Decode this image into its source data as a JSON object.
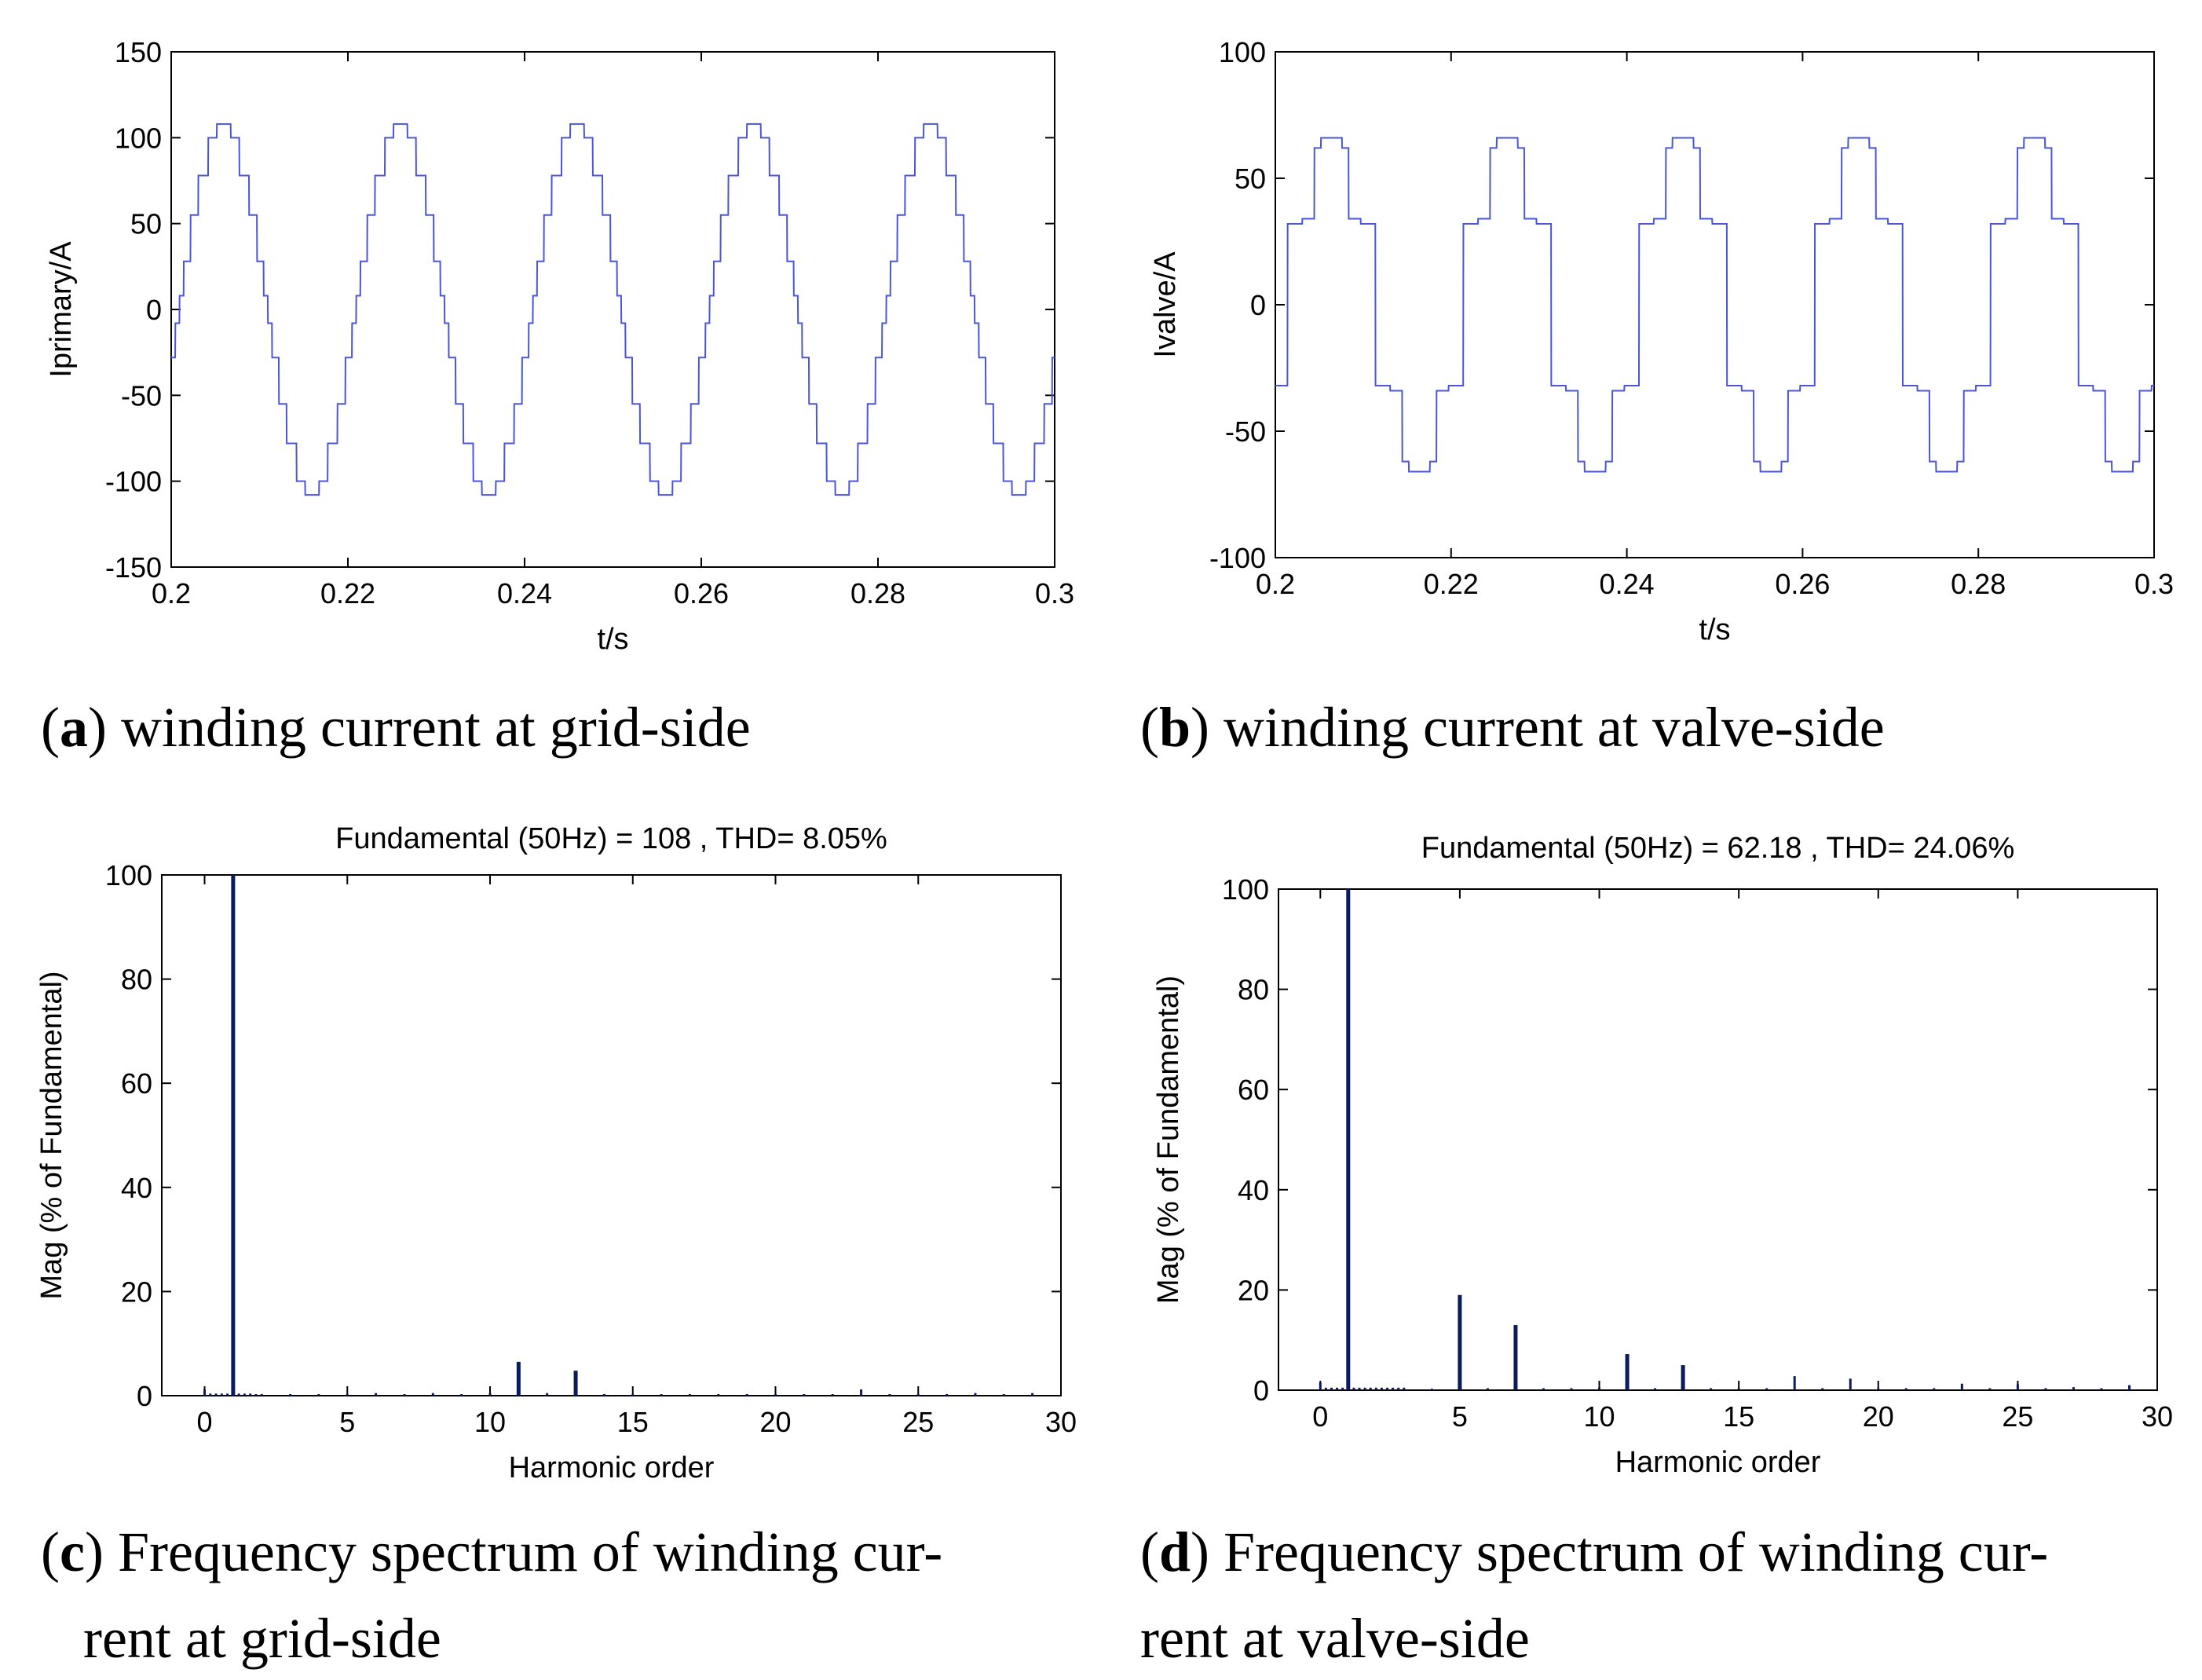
{
  "chart_data": [
    {
      "id": "a",
      "type": "line",
      "caption_letter": "a",
      "caption_lines": [
        "winding current at grid-side"
      ],
      "title": "",
      "xlabel": "t/s",
      "ylabel": "Iprimary/A",
      "xlim": [
        0.2,
        0.3
      ],
      "ylim": [
        -150,
        150
      ],
      "xticks": [
        0.2,
        0.22,
        0.24,
        0.26,
        0.28,
        0.3
      ],
      "xtick_labels": [
        "0.2",
        "0.22",
        "0.24",
        "0.26",
        "0.28",
        "0.3"
      ],
      "yticks": [
        -150,
        -100,
        -50,
        0,
        50,
        100,
        150
      ],
      "ytick_labels": [
        "-150",
        "-100",
        "-50",
        "0",
        "50",
        "100",
        "150"
      ],
      "line_color": "#4a55d8",
      "waveform": {
        "frequency_hz": 50,
        "phase_deg": -17,
        "steps": [
          -108,
          -100,
          -78,
          -55,
          -28,
          -8,
          8,
          28,
          55,
          78,
          100,
          108
        ],
        "thresholds": [
          0.97,
          0.85,
          0.62,
          0.38,
          0.15,
          0.0,
          0.15,
          0.38,
          0.62,
          0.85,
          0.97
        ]
      }
    },
    {
      "id": "b",
      "type": "line",
      "caption_letter": "b",
      "caption_lines": [
        "winding current at valve-side"
      ],
      "title": "",
      "xlabel": "t/s",
      "ylabel": "Ivalve/A",
      "xlim": [
        0.2,
        0.3
      ],
      "ylim": [
        -100,
        100
      ],
      "xticks": [
        0.2,
        0.22,
        0.24,
        0.26,
        0.28,
        0.3
      ],
      "xtick_labels": [
        "0.2",
        "0.22",
        "0.24",
        "0.26",
        "0.28",
        "0.3"
      ],
      "yticks": [
        -100,
        -50,
        0,
        50,
        100
      ],
      "ytick_labels": [
        "-100",
        "-50",
        "0",
        "50",
        "100"
      ],
      "line_color": "#4a55d8",
      "waveform": {
        "frequency_hz": 50,
        "phase_deg": -25,
        "steps": [
          -66,
          -62,
          -34,
          -32,
          32,
          34,
          62,
          66
        ],
        "thresholds": [
          0.93,
          0.82,
          0.5,
          0.0,
          0.5,
          0.82,
          0.93
        ]
      }
    },
    {
      "id": "c",
      "type": "bar",
      "caption_letter": "c",
      "caption_lines": [
        "Frequency spectrum of winding cur-",
        "rent at grid-side"
      ],
      "title": "Fundamental (50Hz) = 108 , THD= 8.05%",
      "xlabel": "Harmonic order",
      "ylabel": "Mag (% of Fundamental)",
      "xlim": [
        -1.5,
        30
      ],
      "ylim": [
        0,
        100
      ],
      "xticks": [
        0,
        5,
        10,
        15,
        20,
        25,
        30
      ],
      "xtick_labels": [
        "0",
        "5",
        "10",
        "15",
        "20",
        "25",
        "30"
      ],
      "yticks": [
        0,
        20,
        40,
        60,
        80,
        100
      ],
      "ytick_labels": [
        "0",
        "20",
        "40",
        "60",
        "80",
        "100"
      ],
      "bar_color": "#0a1a5a",
      "harmonics": [
        0,
        0.2,
        0.4,
        0.6,
        0.8,
        1,
        1.2,
        1.4,
        1.6,
        1.8,
        2,
        3,
        4,
        5,
        6,
        7,
        8,
        9,
        10,
        11,
        12,
        13,
        14,
        15,
        16,
        17,
        18,
        19,
        20,
        21,
        22,
        23,
        24,
        25,
        26,
        27,
        28,
        29
      ],
      "values": [
        1.2,
        0.4,
        0.4,
        0.4,
        0.4,
        100,
        0.4,
        0.4,
        0.4,
        0.3,
        0.3,
        0.3,
        0.3,
        0.3,
        0.5,
        0.3,
        0.5,
        0.3,
        0.5,
        6.5,
        0.5,
        4.8,
        0.3,
        0.3,
        0.3,
        0.3,
        0.3,
        0.3,
        0.3,
        0.3,
        0.3,
        1.2,
        0.3,
        0.3,
        0.3,
        0.5,
        0.3,
        0.5
      ]
    },
    {
      "id": "d",
      "type": "bar",
      "caption_letter": "d",
      "caption_lines": [
        "Frequency spectrum of winding cur-",
        "rent at valve-side"
      ],
      "title": "Fundamental (50Hz) = 62.18 , THD= 24.06%",
      "xlabel": "Harmonic order",
      "ylabel": "Mag (% of Fundamental)",
      "xlim": [
        -1.5,
        30
      ],
      "ylim": [
        0,
        100
      ],
      "xticks": [
        0,
        5,
        10,
        15,
        20,
        25,
        30
      ],
      "xtick_labels": [
        "0",
        "5",
        "10",
        "15",
        "20",
        "25",
        "30"
      ],
      "yticks": [
        0,
        20,
        40,
        60,
        80,
        100
      ],
      "ytick_labels": [
        "0",
        "20",
        "40",
        "60",
        "80",
        "100"
      ],
      "bar_color": "#0a1a5a",
      "harmonics": [
        0,
        0.2,
        0.4,
        0.6,
        0.8,
        1,
        1.2,
        1.4,
        1.6,
        1.8,
        2,
        2.2,
        2.4,
        2.6,
        2.8,
        3,
        4,
        5,
        6,
        7,
        8,
        9,
        10,
        11,
        12,
        13,
        14,
        15,
        16,
        17,
        18,
        19,
        20,
        21,
        22,
        23,
        24,
        25,
        26,
        27,
        28,
        29
      ],
      "values": [
        1.5,
        0.5,
        0.5,
        0.5,
        0.5,
        100,
        0.5,
        0.5,
        0.5,
        0.5,
        0.5,
        0.5,
        0.5,
        0.5,
        0.5,
        0.5,
        0.3,
        19,
        0.4,
        13,
        0.4,
        0.4,
        0.5,
        7.2,
        0.4,
        5,
        0.4,
        0.4,
        0.4,
        2.8,
        0.4,
        2.3,
        0.4,
        0.4,
        0.4,
        1.3,
        0.4,
        1.2,
        0.4,
        0.6,
        0.4,
        1
      ]
    }
  ]
}
